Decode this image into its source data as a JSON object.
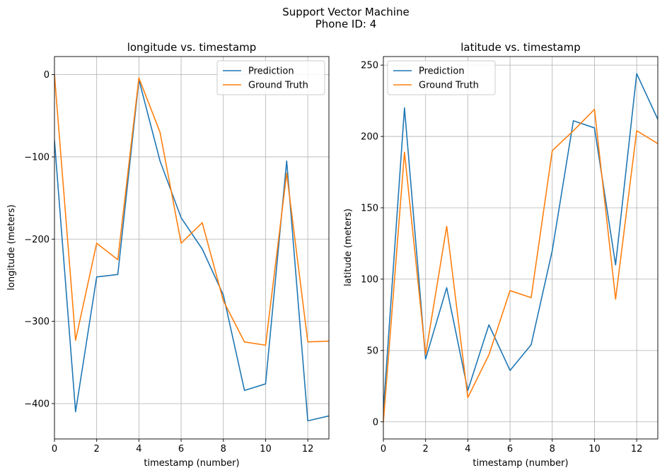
{
  "figure": {
    "title_line1": "Support Vector Machine",
    "title_line2": "Phone ID: 4"
  },
  "colors": {
    "prediction": "#1f77b4",
    "ground_truth": "#ff7f0e",
    "grid": "#b0b0b0"
  },
  "chart_data": [
    {
      "type": "line",
      "title": "longitude vs. timestamp",
      "xlabel": "timestamp (number)",
      "ylabel": "longitude (meters)",
      "xlim": [
        0,
        13
      ],
      "ylim": [
        -443,
        22
      ],
      "xticks": [
        0,
        2,
        4,
        6,
        8,
        10,
        12
      ],
      "yticks": [
        0,
        -100,
        -200,
        -300,
        -400
      ],
      "grid": true,
      "legend_position": "upper right",
      "x": [
        0,
        1,
        2,
        3,
        4,
        5,
        6,
        7,
        8,
        9,
        10,
        11,
        12,
        13
      ],
      "series": [
        {
          "name": "Prediction",
          "values": [
            -80,
            -410,
            -246,
            -243,
            -6,
            -105,
            -174,
            -212,
            -268,
            -384,
            -376,
            -105,
            -421,
            -415
          ]
        },
        {
          "name": "Ground Truth",
          "values": [
            0,
            -323,
            -205,
            -225,
            -4,
            -70,
            -205,
            -180,
            -275,
            -325,
            -329,
            -120,
            -325,
            -324
          ]
        }
      ]
    },
    {
      "type": "line",
      "title": "latitude vs. timestamp",
      "xlabel": "timestamp (number)",
      "ylabel": "latitude (meters)",
      "xlim": [
        0,
        13
      ],
      "ylim": [
        -12,
        256
      ],
      "xticks": [
        0,
        2,
        4,
        6,
        8,
        10,
        12
      ],
      "yticks": [
        0,
        50,
        100,
        150,
        200,
        250
      ],
      "grid": true,
      "legend_position": "upper left",
      "x": [
        0,
        1,
        2,
        3,
        4,
        5,
        6,
        7,
        8,
        9,
        10,
        11,
        12,
        13
      ],
      "series": [
        {
          "name": "Prediction",
          "values": [
            8,
            220,
            44,
            94,
            22,
            68,
            36,
            54,
            120,
            211,
            206,
            110,
            244,
            212
          ]
        },
        {
          "name": "Ground Truth",
          "values": [
            0,
            189,
            47,
            137,
            17,
            47,
            92,
            87,
            190,
            204,
            219,
            86,
            204,
            195
          ]
        }
      ]
    }
  ]
}
